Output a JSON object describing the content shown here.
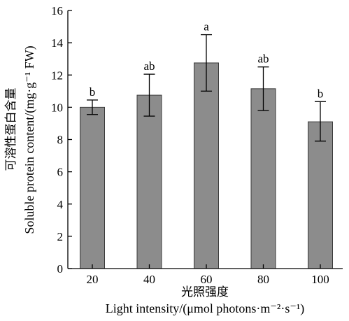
{
  "chart_data": {
    "type": "bar",
    "categories": [
      "20",
      "40",
      "60",
      "80",
      "100"
    ],
    "values": [
      10.0,
      10.75,
      12.75,
      11.15,
      9.1
    ],
    "error_upper": [
      10.45,
      12.05,
      14.5,
      12.5,
      10.35
    ],
    "error_lower": [
      9.55,
      9.45,
      11.0,
      9.8,
      7.9
    ],
    "significance_letters": [
      "b",
      "ab",
      "a",
      "ab",
      "b"
    ],
    "ylim": [
      0,
      16
    ],
    "yticks": [
      "0",
      "2",
      "4",
      "6",
      "8",
      "10",
      "12",
      "14",
      "16"
    ],
    "xlabel_cn": "光照强度",
    "xlabel_en": "Light intensity/(μmol photons·m⁻²·s⁻¹)",
    "ylabel_cn": "可溶性蛋白含量",
    "ylabel_en": "Soluble protein content/(mg·g⁻¹ FW)",
    "bar_color": "#8c8c8c",
    "grid": false
  }
}
